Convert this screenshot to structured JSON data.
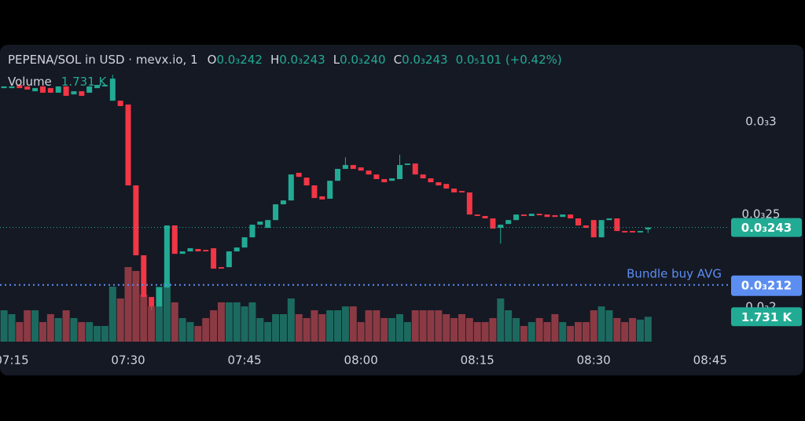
{
  "chart_data": {
    "type": "candlestick",
    "title": "PEPENA/SOL in USD · mevx.io, 1",
    "ohlc": [
      {
        "key": "O",
        "label": "0.0₃242"
      },
      {
        "key": "H",
        "label": "0.0₃243"
      },
      {
        "key": "L",
        "label": "0.0₃240"
      },
      {
        "key": "C",
        "label": "0.0₃243"
      }
    ],
    "change_label": "0.0₅101 (+0.42%)",
    "volume_legend": {
      "name": "Volume",
      "label": "1.731 K"
    },
    "x": [
      "07:14",
      "07:15",
      "07:16",
      "07:17",
      "07:18",
      "07:19",
      "07:20",
      "07:21",
      "07:22",
      "07:23",
      "07:24",
      "07:25",
      "07:26",
      "07:27",
      "07:28",
      "07:29",
      "07:30",
      "07:31",
      "07:32",
      "07:33",
      "07:34",
      "07:35",
      "07:36",
      "07:37",
      "07:38",
      "07:39",
      "07:40",
      "07:41",
      "07:42",
      "07:43",
      "07:44",
      "07:45",
      "07:46",
      "07:47",
      "07:48",
      "07:49",
      "07:50",
      "07:51",
      "07:52",
      "07:53",
      "07:54",
      "07:55",
      "07:56",
      "07:57",
      "07:58",
      "07:59",
      "08:00",
      "08:01",
      "08:02",
      "08:03",
      "08:04",
      "08:05",
      "08:06",
      "08:07",
      "08:08",
      "08:09",
      "08:10",
      "08:11",
      "08:12",
      "08:13",
      "08:14",
      "08:15",
      "08:16",
      "08:17",
      "08:18",
      "08:19",
      "08:20",
      "08:21",
      "08:22",
      "08:23",
      "08:24",
      "08:25",
      "08:26",
      "08:27",
      "08:28",
      "08:29",
      "08:30",
      "08:31",
      "08:32",
      "08:33",
      "08:34",
      "08:35",
      "08:36",
      "08:37"
    ],
    "open": [
      0.0003182,
      0.0003182,
      0.0003199,
      0.0003191,
      0.0003165,
      0.0003191,
      0.0003182,
      0.0003157,
      0.0003191,
      0.0003148,
      0.0003165,
      0.0003157,
      0.0003182,
      0.0003191,
      0.0003114,
      0.0003114,
      0.0003093,
      0.0002657,
      0.000228,
      0.0002055,
      0.0002004,
      0.0002106,
      0.0002441,
      0.0002288,
      0.0002301,
      0.0002314,
      0.0002309,
      0.0002318,
      0.0002216,
      0.0002216,
      0.0002301,
      0.0002322,
      0.0002377,
      0.0002445,
      0.0002428,
      0.000247,
      0.0002555,
      0.0002576,
      0.0002725,
      0.0002699,
      0.0002657,
      0.0002598,
      0.0002585,
      0.0002682,
      0.0002746,
      0.0002767,
      0.0002754,
      0.0002737,
      0.0002716,
      0.0002691,
      0.0002682,
      0.0002691,
      0.0002767,
      0.0002775,
      0.0002716,
      0.0002695,
      0.0002674,
      0.0002665,
      0.000264,
      0.0002627,
      0.0002619,
      0.00025,
      0.0002492,
      0.0002479,
      0.0002428,
      0.0002449,
      0.000247,
      0.00025,
      0.0002492,
      0.0002504,
      0.00025,
      0.0002496,
      0.0002487,
      0.00025,
      0.0002479,
      0.0002441,
      0.000247,
      0.0002377,
      0.000247,
      0.0002479,
      0.0002411,
      0.0002411,
      0.0002403,
      0.000242
    ],
    "high": [
      0.0003191,
      0.0003191,
      0.0003199,
      0.0003191,
      0.0003182,
      0.0003191,
      0.0003182,
      0.0003191,
      0.0003191,
      0.0003165,
      0.0003165,
      0.0003191,
      0.0003199,
      0.0003199,
      0.0003254,
      0.0003114,
      0.0003093,
      0.0002657,
      0.000228,
      0.0002055,
      0.0002106,
      0.0002441,
      0.0002441,
      0.0002301,
      0.0002318,
      0.0002314,
      0.0002309,
      0.0002318,
      0.0002216,
      0.0002301,
      0.0002322,
      0.0002377,
      0.0002445,
      0.0002462,
      0.000247,
      0.0002555,
      0.0002576,
      0.0002716,
      0.0002725,
      0.0002699,
      0.0002657,
      0.0002598,
      0.0002682,
      0.0002746,
      0.0002809,
      0.0002767,
      0.0002754,
      0.0002737,
      0.0002716,
      0.0002691,
      0.0002695,
      0.0002822,
      0.0002775,
      0.0002775,
      0.0002716,
      0.0002695,
      0.0002674,
      0.0002665,
      0.000264,
      0.0002627,
      0.0002619,
      0.00025,
      0.0002492,
      0.0002479,
      0.0002445,
      0.000247,
      0.00025,
      0.00025,
      0.0002504,
      0.0002504,
      0.00025,
      0.0002496,
      0.00025,
      0.00025,
      0.0002479,
      0.0002441,
      0.000247,
      0.000247,
      0.0002479,
      0.0002479,
      0.0002411,
      0.0002411,
      0.0002411,
      0.000243
    ],
    "low": [
      0.0003182,
      0.0003182,
      0.0003182,
      0.0003174,
      0.0003165,
      0.0003157,
      0.0003157,
      0.0003157,
      0.000314,
      0.0003148,
      0.000314,
      0.0003157,
      0.0003182,
      0.0003191,
      0.0003114,
      0.0003085,
      0.0002657,
      0.000228,
      0.0002055,
      0.0001983,
      0.0002004,
      0.0002106,
      0.0002288,
      0.0002288,
      0.0002301,
      0.0002301,
      0.0002301,
      0.0002208,
      0.0002208,
      0.0002216,
      0.0002301,
      0.0002322,
      0.0002377,
      0.0002445,
      0.0002428,
      0.000247,
      0.0002555,
      0.0002576,
      0.0002703,
      0.0002657,
      0.0002589,
      0.0002581,
      0.0002585,
      0.0002682,
      0.0002746,
      0.0002746,
      0.0002737,
      0.0002716,
      0.0002691,
      0.0002674,
      0.0002682,
      0.0002691,
      0.0002767,
      0.0002716,
      0.0002695,
      0.0002674,
      0.0002657,
      0.000264,
      0.0002619,
      0.0002619,
      0.00025,
      0.0002492,
      0.0002479,
      0.0002424,
      0.0002343,
      0.0002449,
      0.000247,
      0.0002492,
      0.0002492,
      0.0002496,
      0.0002487,
      0.0002487,
      0.0002487,
      0.0002479,
      0.0002441,
      0.0002428,
      0.0002377,
      0.0002377,
      0.000247,
      0.0002411,
      0.0002403,
      0.0002403,
      0.0002403,
      0.00024
    ],
    "close": [
      0.0003191,
      0.0003191,
      0.0003182,
      0.0003174,
      0.0003182,
      0.0003157,
      0.0003157,
      0.0003191,
      0.000314,
      0.0003165,
      0.000314,
      0.0003191,
      0.0003199,
      0.0003199,
      0.0003233,
      0.0003085,
      0.0002657,
      0.000228,
      0.0002055,
      0.0002004,
      0.0002106,
      0.0002441,
      0.0002288,
      0.0002301,
      0.0002318,
      0.0002301,
      0.0002301,
      0.0002208,
      0.0002208,
      0.0002301,
      0.0002322,
      0.0002377,
      0.0002445,
      0.0002462,
      0.000247,
      0.0002555,
      0.0002576,
      0.0002716,
      0.0002703,
      0.0002657,
      0.0002589,
      0.0002581,
      0.0002682,
      0.0002746,
      0.0002767,
      0.0002746,
      0.0002737,
      0.0002716,
      0.0002691,
      0.0002674,
      0.0002695,
      0.0002767,
      0.0002775,
      0.0002716,
      0.0002695,
      0.0002674,
      0.0002657,
      0.000264,
      0.0002619,
      0.0002619,
      0.00025,
      0.0002492,
      0.0002479,
      0.0002424,
      0.0002445,
      0.000247,
      0.00025,
      0.0002492,
      0.0002504,
      0.0002496,
      0.0002487,
      0.0002487,
      0.00025,
      0.0002479,
      0.0002441,
      0.0002428,
      0.0002377,
      0.000247,
      0.0002479,
      0.0002411,
      0.0002403,
      0.0002403,
      0.0002411,
      0.000243
    ],
    "volume": [
      2180,
      1910,
      1360,
      2180,
      2180,
      1360,
      1910,
      1640,
      2180,
      1640,
      1360,
      1360,
      1090,
      1090,
      3820,
      3000,
      5180,
      4910,
      3270,
      2450,
      3820,
      4090,
      2730,
      1640,
      1360,
      1090,
      1640,
      2180,
      2730,
      2730,
      2730,
      2450,
      2730,
      1640,
      1360,
      1910,
      1910,
      3000,
      1910,
      1640,
      2180,
      1910,
      2180,
      2180,
      2450,
      2450,
      1360,
      2180,
      2180,
      1640,
      1640,
      1910,
      1360,
      2180,
      2180,
      2180,
      2180,
      1910,
      1640,
      1910,
      1640,
      1360,
      1360,
      1640,
      3000,
      2180,
      1640,
      1090,
      1360,
      1640,
      1360,
      1910,
      1360,
      1090,
      1360,
      1360,
      2180,
      2450,
      2180,
      1640,
      1360,
      1640,
      1530,
      1731
    ],
    "up_color": "#22ab94",
    "down_color": "#f23645",
    "volume_up_color": "#1c6a5f",
    "volume_down_color": "#8b3a44",
    "ylim": [
      0.0001814,
      0.0003403
    ],
    "yticks": [
      {
        "value": 0.0003,
        "label": "0.0₃3"
      },
      {
        "value": 0.00025,
        "label": "0.0₃25"
      },
      {
        "value": 0.0002,
        "label": "0.0₃2"
      }
    ],
    "y2lim": [
      0,
      6000
    ],
    "xticks": [
      "07:15",
      "07:30",
      "07:45",
      "08:00",
      "08:15",
      "08:30",
      "08:45"
    ],
    "price_line": {
      "value": 0.000243,
      "label": "0.0₃243",
      "color": "#22ab94"
    },
    "reference_line": {
      "name": "Bundle buy AVG",
      "value": 0.000212,
      "label": "0.0₃212",
      "color": "#5c8ef2"
    }
  }
}
